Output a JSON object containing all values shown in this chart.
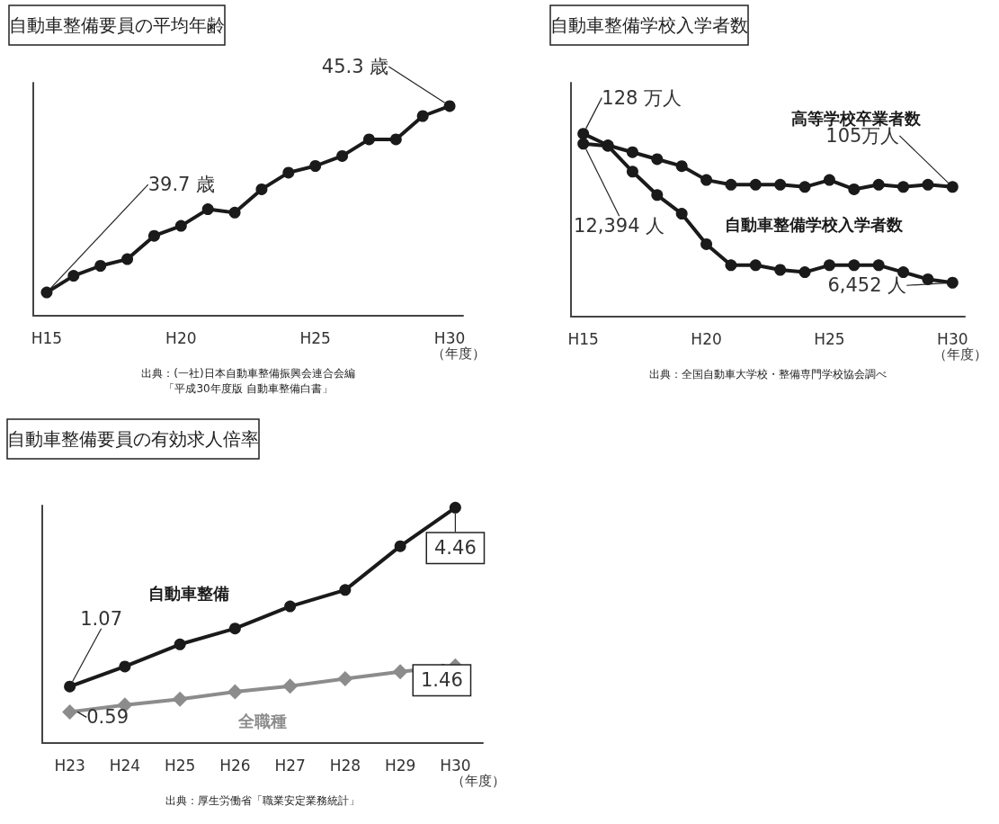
{
  "chart_data": [
    {
      "type": "line",
      "title": "自動車整備要員の平均年齢",
      "xlabel": "（年度）",
      "categories": [
        "H15",
        null,
        null,
        null,
        null,
        "H20",
        null,
        null,
        null,
        null,
        "H25",
        null,
        null,
        null,
        null,
        "H30"
      ],
      "series": [
        {
          "color": "#1a1a1a",
          "values": [
            39.7,
            40.2,
            40.5,
            40.7,
            41.4,
            41.7,
            42.2,
            42.1,
            42.8,
            43.3,
            43.5,
            43.8,
            44.3,
            44.3,
            45.0,
            45.3
          ],
          "value_labels": [
            "39.7 歳",
            null,
            null,
            null,
            null,
            null,
            null,
            null,
            null,
            null,
            null,
            null,
            null,
            null,
            null,
            "45.3 歳"
          ]
        }
      ],
      "ylim": [
        39.0,
        46.0
      ],
      "marker": "circle",
      "tick_labels": "x",
      "grid": false,
      "annotations": [
        "出典：(一社)日本自動車整備振興会連合会編",
        "「平成30年度版 自動車整備白書」"
      ]
    },
    {
      "type": "line",
      "title": "自動車整備学校入学者数",
      "xlabel": "（年度）",
      "categories": [
        "H15",
        null,
        null,
        null,
        null,
        "H20",
        null,
        null,
        null,
        null,
        "H25",
        null,
        null,
        null,
        null,
        "H30"
      ],
      "series": [
        {
          "name": "高等学校卒業者数",
          "color": "#1a1a1a",
          "values": [
            128,
            123,
            120,
            117,
            114,
            108,
            106,
            106,
            106,
            105,
            108,
            104,
            106,
            105,
            106,
            105
          ],
          "value_labels": [
            "128 万人",
            null,
            null,
            null,
            null,
            null,
            null,
            null,
            null,
            null,
            null,
            null,
            null,
            null,
            null,
            "105万人"
          ]
        },
        {
          "name": "自動車整備学校入学者数",
          "color": "#1a1a1a",
          "axis": "y2",
          "values": [
            12394,
            12300,
            11200,
            10200,
            9400,
            8100,
            7200,
            7200,
            7000,
            6900,
            7200,
            7200,
            7200,
            6900,
            6600,
            6452
          ],
          "value_labels": [
            "12,394 人",
            null,
            null,
            null,
            null,
            null,
            null,
            null,
            null,
            null,
            null,
            null,
            null,
            null,
            null,
            "6,452 人"
          ]
        }
      ],
      "ylim": [
        49,
        150
      ],
      "y2lim": [
        5000,
        15000
      ],
      "marker": "circle",
      "tick_labels": "x",
      "grid": false,
      "annotations": [
        "出典：全国自動車大学校・整備専門学校協会調べ"
      ]
    },
    {
      "type": "line",
      "title": "自動車整備要員の有効求人倍率",
      "xlabel": "（年度）",
      "categories": [
        "H23",
        "H24",
        "H25",
        "H26",
        "H27",
        "H28",
        "H29",
        "H30"
      ],
      "series": [
        {
          "name": "自動車整備",
          "color": "#1a1a1a",
          "marker": "circle",
          "values": [
            1.07,
            1.45,
            1.87,
            2.17,
            2.59,
            2.9,
            3.73,
            4.46
          ],
          "value_labels": [
            "1.07",
            null,
            null,
            null,
            null,
            null,
            null,
            "4.46"
          ]
        },
        {
          "name": "全職種",
          "color": "#8c8c8c",
          "marker": "diamond",
          "values": [
            0.59,
            0.72,
            0.83,
            0.97,
            1.08,
            1.22,
            1.35,
            1.46
          ],
          "value_labels": [
            "0.59",
            null,
            null,
            null,
            null,
            null,
            null,
            "1.46"
          ]
        }
      ],
      "ylim": [
        0,
        4.5
      ],
      "tick_labels": "x",
      "grid": false,
      "annotations": [
        "出典：厚生労働省「職業安定業務統計」"
      ]
    }
  ]
}
